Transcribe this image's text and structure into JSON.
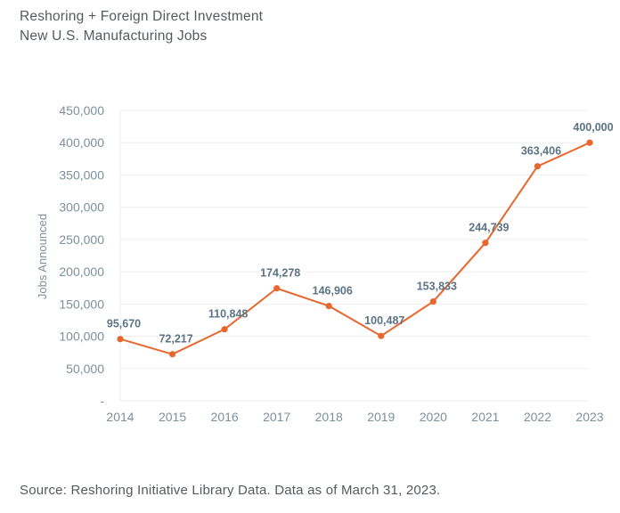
{
  "header": {
    "title_line1": "Reshoring + Foreign Direct Investment",
    "title_line2": "New U.S. Manufacturing Jobs"
  },
  "footer": {
    "source": "Source: Reshoring Initiative Library Data. Data as of March 31, 2023."
  },
  "colors": {
    "line": "#e8672f",
    "grid": "#eeeeee",
    "axis_text": "#7d8f9c",
    "label_text": "#5b7385"
  },
  "chart_data": {
    "type": "line",
    "title": "Reshoring + Foreign Direct Investment New U.S. Manufacturing Jobs",
    "xlabel": "",
    "ylabel": "Jobs Announced",
    "x": [
      "2014",
      "2015",
      "2016",
      "2017",
      "2018",
      "2019",
      "2020",
      "2021",
      "2022",
      "2023"
    ],
    "values": [
      95670,
      72217,
      110848,
      174278,
      146906,
      100487,
      153833,
      244739,
      363406,
      400000
    ],
    "data_labels": [
      "95,670",
      "72,217",
      "110,848",
      "174,278",
      "146,906",
      "100,487",
      "153,833",
      "244,739",
      "363,406",
      "400,000"
    ],
    "ylim": [
      0,
      450000
    ],
    "yticks": [
      0,
      50000,
      100000,
      150000,
      200000,
      250000,
      300000,
      350000,
      400000,
      450000
    ],
    "ytick_labels": [
      "-",
      "50,000",
      "100,000",
      "150,000",
      "200,000",
      "250,000",
      "300,000",
      "350,000",
      "400,000",
      "450,000"
    ],
    "grid": true,
    "legend": "none"
  }
}
